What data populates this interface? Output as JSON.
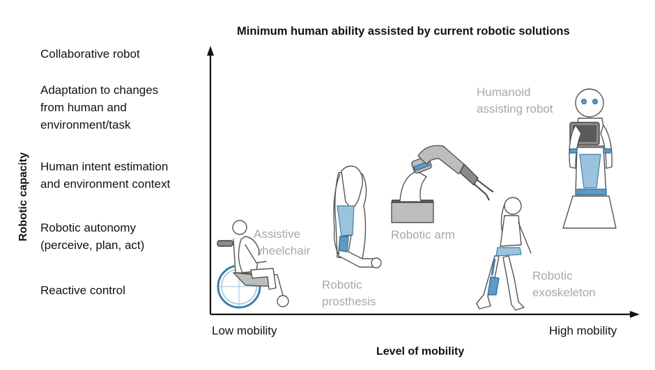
{
  "title": "Minimum human ability assisted by current robotic solutions",
  "y_axis": {
    "label": "Robotic capacity",
    "levels": [
      {
        "lines": [
          "Collaborative robot"
        ]
      },
      {
        "lines": [
          "Adaptation to changes",
          "from human and",
          "environment/task"
        ]
      },
      {
        "lines": [
          "Human intent estimation",
          "and environment context"
        ]
      },
      {
        "lines": [
          "Robotic autonomy",
          "(perceive, plan, act)"
        ]
      },
      {
        "lines": [
          "Reactive control"
        ]
      }
    ]
  },
  "x_axis": {
    "label": "Level of mobility",
    "low": "Low mobility",
    "high": "High mobility"
  },
  "devices": [
    {
      "lines": [
        "Assistive",
        "wheelchair"
      ],
      "icon": "wheelchair-user-icon"
    },
    {
      "lines": [
        "Robotic",
        "prosthesis"
      ],
      "icon": "prosthetic-arm-icon"
    },
    {
      "lines": [
        "Robotic arm"
      ],
      "icon": "robotic-arm-icon"
    },
    {
      "lines": [
        "Robotic",
        "exoskeleton"
      ],
      "icon": "exoskeleton-walker-icon"
    },
    {
      "lines": [
        "Humanoid",
        "assisting robot"
      ],
      "icon": "humanoid-robot-icon"
    }
  ],
  "colors": {
    "accent": "#5b9bc4",
    "label_gray": "#a8a8a8",
    "axis": "#111111"
  }
}
